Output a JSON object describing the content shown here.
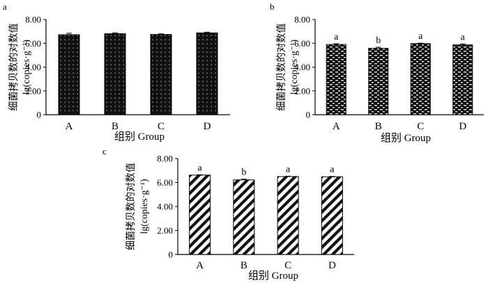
{
  "chart_data": [
    {
      "panel": "a",
      "type": "bar",
      "categories": [
        "A",
        "B",
        "C",
        "D"
      ],
      "values": [
        6.72,
        6.8,
        6.74,
        6.87
      ],
      "errors": [
        0.12,
        0.07,
        0.05,
        0.06
      ],
      "significance": [
        "",
        "",
        "",
        ""
      ],
      "pattern": "dots",
      "ylim": [
        0,
        8
      ],
      "yticks": [
        "0",
        "2.00",
        "4.00",
        "6.00",
        "8.00"
      ],
      "xlabel": "组别 Group",
      "ylabel_line1": "细菌拷贝数的对数值",
      "ylabel_line2": "lg(copies·g⁻¹)"
    },
    {
      "panel": "b",
      "type": "bar",
      "categories": [
        "A",
        "B",
        "C",
        "D"
      ],
      "values": [
        5.9,
        5.58,
        5.97,
        5.87
      ],
      "errors": [
        0.06,
        0.09,
        0.04,
        0.07
      ],
      "significance": [
        "a",
        "b",
        "a",
        "a"
      ],
      "pattern": "dashes",
      "ylim": [
        0,
        8
      ],
      "yticks": [
        "0",
        "2.00",
        "4.00",
        "6.00",
        "8.00"
      ],
      "xlabel": "组别 Group",
      "ylabel_line1": "细菌拷贝数的对数值",
      "ylabel_line2": "lg(copies·g⁻¹)"
    },
    {
      "panel": "c",
      "type": "bar",
      "categories": [
        "A",
        "B",
        "C",
        "D"
      ],
      "values": [
        6.62,
        6.22,
        6.5,
        6.48
      ],
      "errors": [
        0.03,
        0.06,
        0.03,
        0.03
      ],
      "significance": [
        "a",
        "b",
        "a",
        "a"
      ],
      "pattern": "diagonal",
      "ylim": [
        0,
        8
      ],
      "yticks": [
        "0",
        "2.00",
        "4.00",
        "6.00",
        "8.00"
      ],
      "xlabel": "组别 Group",
      "ylabel_line1": "细菌拷贝数的对数值",
      "ylabel_line2": "lg(copies·g⁻¹)"
    }
  ]
}
